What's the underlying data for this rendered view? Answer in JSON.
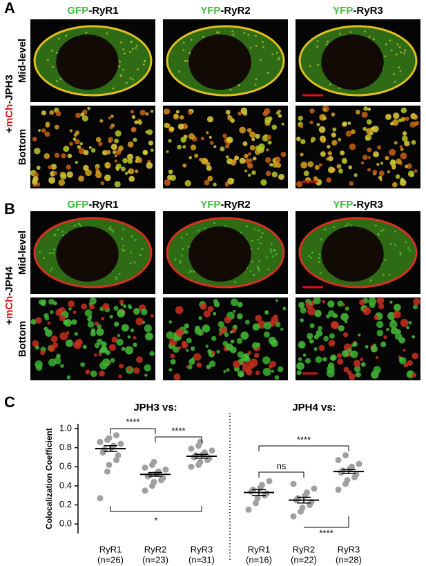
{
  "panels": [
    {
      "label": "A",
      "side": {
        "prefix": "+",
        "tag": "mCh",
        "name": "-JPH3"
      },
      "rows": [
        "Mid-level",
        "Bottom"
      ],
      "columns": [
        {
          "tag": "GFP",
          "name": "-RyR1"
        },
        {
          "tag": "YFP",
          "name": "-RyR2"
        },
        {
          "tag": "YFP",
          "name": "-RyR3"
        }
      ]
    },
    {
      "label": "B",
      "side": {
        "prefix": "+",
        "tag": "mCh",
        "name": "-JPH4"
      },
      "rows": [
        "Mid-level",
        "Bottom"
      ],
      "columns": [
        {
          "tag": "GFP",
          "name": "-RyR1"
        },
        {
          "tag": "YFP",
          "name": "-RyR2"
        },
        {
          "tag": "YFP",
          "name": "-RyR3"
        }
      ]
    }
  ],
  "chart_data": {
    "type": "strip",
    "label": "C",
    "ylabel": "Colocalization  Coefficient",
    "groups": [
      "JPH3  vs:",
      "JPH4  vs:"
    ],
    "categories": [
      "RyR1",
      "RyR2",
      "RyR3",
      "RyR1",
      "RyR2",
      "RyR3"
    ],
    "category_notes": [
      "(n=26)",
      "(n=23)",
      "(n=31)",
      "(n=16)",
      "(n=22)",
      "(n=28)"
    ],
    "means": [
      0.79,
      0.52,
      0.71,
      0.33,
      0.25,
      0.55
    ],
    "sems": [
      0.03,
      0.02,
      0.02,
      0.03,
      0.03,
      0.02
    ],
    "points": [
      [
        0.27,
        0.55,
        0.62,
        0.67,
        0.72,
        0.75,
        0.78,
        0.8,
        0.82,
        0.84,
        0.86,
        0.88,
        0.9,
        0.93
      ],
      [
        0.35,
        0.4,
        0.44,
        0.46,
        0.48,
        0.5,
        0.51,
        0.53,
        0.55,
        0.57,
        0.59,
        0.62,
        0.65
      ],
      [
        0.6,
        0.62,
        0.65,
        0.67,
        0.69,
        0.7,
        0.72,
        0.73,
        0.75,
        0.77,
        0.79,
        0.82,
        0.86
      ],
      [
        0.15,
        0.22,
        0.27,
        0.3,
        0.32,
        0.34,
        0.36,
        0.38,
        0.41,
        0.45
      ],
      [
        0.08,
        0.13,
        0.17,
        0.2,
        0.23,
        0.25,
        0.27,
        0.3,
        0.33,
        0.37,
        0.42
      ],
      [
        0.36,
        0.42,
        0.46,
        0.49,
        0.52,
        0.54,
        0.56,
        0.58,
        0.6,
        0.63,
        0.67,
        0.72
      ]
    ],
    "point_color": "#a0a0a0",
    "annotations": [
      "****",
      "****",
      "*",
      "****",
      "ns",
      "****"
    ],
    "ylim": [
      -0.1,
      1.05
    ],
    "yticks": [
      {
        "value": 1,
        "label": "1.0"
      },
      {
        "value": 0.8,
        "label": "0.8"
      },
      {
        "value": 0.6,
        "label": "0.6"
      },
      {
        "value": 0.4,
        "label": "0.4"
      },
      {
        "value": 0.2,
        "label": "0.2"
      },
      {
        "value": 0,
        "label": "0.0"
      }
    ]
  }
}
